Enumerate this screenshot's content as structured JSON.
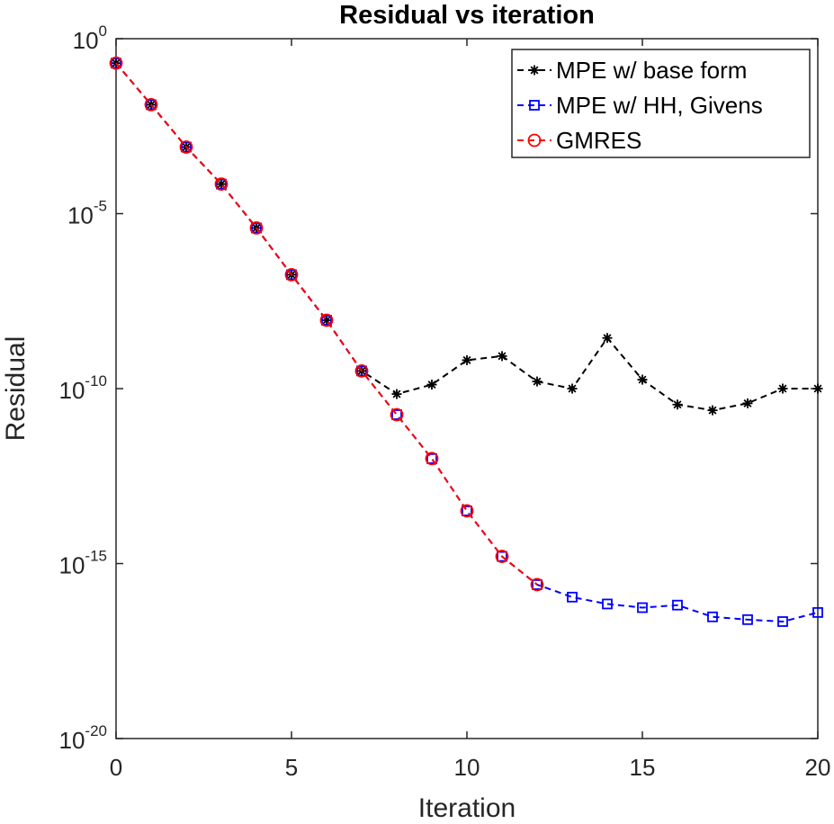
{
  "chart_data": {
    "type": "line",
    "title": "Residual vs iteration",
    "xlabel": "Iteration",
    "ylabel": "Residual",
    "xlim": [
      0,
      20
    ],
    "ylim": [
      1e-20,
      1
    ],
    "yscale": "log",
    "grid": false,
    "legend_position": "top-right",
    "x_ticks": [
      0,
      5,
      10,
      15,
      20
    ],
    "y_ticks": [
      {
        "base": "10",
        "exp": "0",
        "value": 1
      },
      {
        "base": "10",
        "exp": "-5",
        "value": 1e-05
      },
      {
        "base": "10",
        "exp": "-10",
        "value": 1e-10
      },
      {
        "base": "10",
        "exp": "-15",
        "value": 1e-15
      },
      {
        "base": "10",
        "exp": "-20",
        "value": 1e-20
      }
    ],
    "series": [
      {
        "name": "MPE w/ base form",
        "color": "#000000",
        "marker": "asterisk",
        "line_style": "dashed",
        "x": [
          0,
          1,
          2,
          3,
          4,
          5,
          6,
          7,
          8,
          9,
          10,
          11,
          12,
          13,
          14,
          15,
          16,
          17,
          18,
          19,
          20
        ],
        "y": [
          0.2,
          0.013,
          0.0008,
          7e-05,
          3.9e-06,
          1.8e-07,
          9e-09,
          3.2e-10,
          7e-11,
          1.3e-10,
          6.5e-10,
          8.5e-10,
          1.6e-10,
          1e-10,
          2.8e-09,
          1.8e-10,
          3.5e-11,
          2.4e-11,
          3.8e-11,
          1e-10,
          1e-10
        ]
      },
      {
        "name": "MPE w/ HH, Givens",
        "color": "#0000ff",
        "marker": "square",
        "line_style": "dashed",
        "x": [
          0,
          1,
          2,
          3,
          4,
          5,
          6,
          7,
          8,
          9,
          10,
          11,
          12,
          13,
          14,
          15,
          16,
          17,
          18,
          19,
          20
        ],
        "y": [
          0.2,
          0.013,
          0.0008,
          7e-05,
          3.9e-06,
          1.8e-07,
          9e-09,
          3.2e-10,
          1.8e-11,
          1e-12,
          3.2e-14,
          1.6e-15,
          2.5e-16,
          1.1e-16,
          7e-17,
          5.5e-17,
          6.5e-17,
          3e-17,
          2.5e-17,
          2.2e-17,
          4e-17
        ]
      },
      {
        "name": "GMRES",
        "color": "#ff0000",
        "marker": "circle",
        "line_style": "dashed",
        "x": [
          0,
          1,
          2,
          3,
          4,
          5,
          6,
          7,
          8,
          9,
          10,
          11,
          12
        ],
        "y": [
          0.2,
          0.013,
          0.0008,
          7e-05,
          3.9e-06,
          1.8e-07,
          9e-09,
          3.2e-10,
          1.8e-11,
          1e-12,
          3.2e-14,
          1.6e-15,
          2.5e-16
        ]
      }
    ]
  }
}
